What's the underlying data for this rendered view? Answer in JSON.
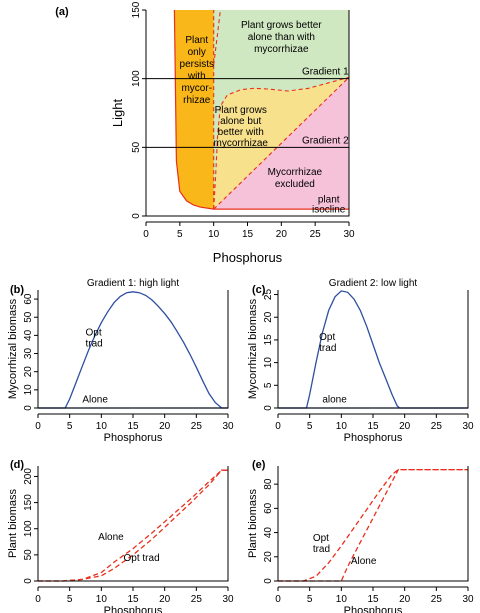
{
  "chart_data": [
    {
      "panel": "(a)",
      "type": "area",
      "xlabel": "Phosphorus",
      "ylabel": "Light",
      "xlim": [
        0,
        30
      ],
      "ylim": [
        0,
        150
      ],
      "xticks": [
        0,
        5,
        10,
        15,
        20,
        25,
        30
      ],
      "yticks": [
        0,
        50,
        100,
        150
      ],
      "regions": [
        {
          "label": "Plant only persists with mycor-rhizae",
          "lines": [
            "Plant",
            "only",
            "persists",
            "with",
            "mycor-",
            "rhizae"
          ],
          "color": "#f9b719"
        },
        {
          "label": "Plant grows better alone than with mycorrhizae",
          "lines": [
            "Plant grows better",
            "alone than with",
            "mycorrhizae"
          ],
          "color": "#cfe8c1"
        },
        {
          "label": "Plant grows alone but better with mycorrhizae",
          "lines": [
            "Plant grows",
            "alone but",
            "better with",
            "mycorrhizae"
          ],
          "color": "#f8e18c"
        },
        {
          "label": "Mycorrhizae excluded",
          "lines": [
            "Mycorrhizae",
            "excluded"
          ],
          "color": "#f6c2da"
        }
      ],
      "gradients": [
        {
          "label": "Gradient 1",
          "light": 100
        },
        {
          "label": "Gradient 2",
          "light": 50
        }
      ],
      "isocline_label": [
        "plant",
        "isocline"
      ],
      "isocline_color": "#e8301c",
      "boundary_points": {
        "plant_isocline": [
          [
            4.2,
            150
          ],
          [
            4.5,
            40
          ],
          [
            5,
            18
          ],
          [
            6,
            11
          ],
          [
            7,
            8
          ],
          [
            8,
            6.5
          ],
          [
            10,
            5
          ],
          [
            30,
            5
          ]
        ],
        "mycorrhiza_persistence": [
          [
            10,
            5
          ],
          [
            10.3,
            30
          ],
          [
            10.6,
            60
          ],
          [
            11,
            80
          ],
          [
            12,
            88
          ],
          [
            14,
            92
          ],
          [
            16,
            93
          ],
          [
            18,
            92.5
          ],
          [
            21,
            91
          ],
          [
            24,
            93
          ],
          [
            27,
            97
          ],
          [
            30,
            101
          ]
        ],
        "vertical_p10": [
          [
            10,
            5
          ],
          [
            10,
            150
          ]
        ],
        "upper_left_dashed": [
          [
            10,
            110
          ],
          [
            10.5,
            130
          ],
          [
            11,
            150
          ]
        ],
        "diagonal_upper": [
          [
            10,
            5
          ],
          [
            30,
            101
          ]
        ]
      }
    },
    {
      "panel": "(b)",
      "type": "line",
      "title": "Gradient 1: high light",
      "xlabel": "Phosphorus",
      "ylabel": "Mycorrhizal biomass",
      "xlim": [
        0,
        30
      ],
      "ylim": [
        0,
        65
      ],
      "xticks": [
        0,
        5,
        10,
        15,
        20,
        25,
        30
      ],
      "yticks": [
        0,
        10,
        20,
        30,
        40,
        50,
        60
      ],
      "color": "#2e4ea0",
      "series": [
        {
          "name": "Opt trad",
          "x": [
            0,
            4.3,
            5,
            6,
            7,
            8,
            9,
            10,
            11,
            12,
            13,
            14,
            15,
            16,
            17,
            18,
            19,
            20,
            21,
            22,
            23,
            24,
            25,
            26,
            27,
            28,
            29,
            29.5,
            30
          ],
          "values": [
            0,
            0,
            5,
            14,
            23,
            32,
            40,
            47,
            53,
            58,
            61.5,
            63.5,
            64,
            63.5,
            62,
            59.5,
            56,
            52,
            47.5,
            42,
            36,
            29.5,
            22.5,
            15,
            8,
            3,
            0,
            0,
            0
          ]
        },
        {
          "name": "Alone",
          "x": [
            0,
            30
          ],
          "values": [
            0,
            0
          ]
        }
      ],
      "annotations": [
        {
          "lines": [
            "Opt",
            "trad"
          ],
          "x": 7.5,
          "y": 40
        },
        {
          "lines": [
            "Alone"
          ],
          "x": 7,
          "y": 3
        }
      ]
    },
    {
      "panel": "(c)",
      "type": "line",
      "title": "Gradient 2: low light",
      "xlabel": "Phosphorus",
      "ylabel": "Mycorrhizal biomass",
      "xlim": [
        0,
        30
      ],
      "ylim": [
        0,
        26
      ],
      "xticks": [
        0,
        5,
        10,
        15,
        20,
        25,
        30
      ],
      "yticks": [
        0,
        5,
        10,
        15,
        20,
        25
      ],
      "color": "#2e4ea0",
      "series": [
        {
          "name": "Opt trad",
          "x": [
            0,
            4.5,
            5,
            6,
            7,
            8,
            9,
            10,
            11,
            12,
            13,
            14,
            15,
            16,
            17,
            18,
            18.8,
            19.2,
            30
          ],
          "values": [
            0,
            0,
            3,
            10,
            16.5,
            21.5,
            24.5,
            25.8,
            25.5,
            24,
            21.5,
            18,
            14,
            10,
            6.5,
            3,
            0.5,
            0,
            0
          ]
        },
        {
          "name": "alone",
          "x": [
            0,
            30
          ],
          "values": [
            0,
            0
          ]
        }
      ],
      "annotations": [
        {
          "lines": [
            "Opt",
            "trad"
          ],
          "x": 6.5,
          "y": 15
        },
        {
          "lines": [
            "alone"
          ],
          "x": 7,
          "y": 1.2
        }
      ]
    },
    {
      "panel": "(d)",
      "type": "line",
      "xlabel": "Phosphorus",
      "ylabel": "Plant biomass",
      "xlim": [
        0,
        30
      ],
      "ylim": [
        0,
        220
      ],
      "xticks": [
        0,
        5,
        10,
        15,
        20,
        25,
        30
      ],
      "yticks": [
        0,
        50,
        100,
        150,
        200
      ],
      "color": "#e8301c",
      "series": [
        {
          "name": "Alone",
          "x": [
            0,
            4,
            7,
            10,
            12,
            15,
            18,
            21,
            24,
            27,
            29,
            30
          ],
          "values": [
            0,
            0,
            3,
            16,
            36,
            62,
            92,
            124,
            156,
            190,
            212,
            212
          ]
        },
        {
          "name": "Opt trad",
          "x": [
            0,
            4,
            7,
            10,
            12,
            15,
            18,
            21,
            24,
            27,
            29,
            30
          ],
          "values": [
            0,
            0,
            3,
            10,
            24,
            50,
            80,
            114,
            148,
            184,
            212,
            212
          ]
        }
      ],
      "annotations": [
        {
          "lines": [
            "Alone"
          ],
          "x": 9.5,
          "y": 78
        },
        {
          "lines": [
            "Opt trad"
          ],
          "x": 13.5,
          "y": 38
        }
      ]
    },
    {
      "panel": "(e)",
      "type": "line",
      "xlabel": "Phosphorus",
      "ylabel": "Plant biomass",
      "xlim": [
        0,
        30
      ],
      "ylim": [
        0,
        95
      ],
      "xticks": [
        0,
        5,
        10,
        15,
        20,
        25,
        30
      ],
      "yticks": [
        0,
        20,
        40,
        60,
        80
      ],
      "color": "#e8301c",
      "series": [
        {
          "name": "Opt trad",
          "x": [
            0,
            4,
            6,
            8,
            10,
            12,
            14,
            16,
            18,
            19,
            30
          ],
          "values": [
            0,
            0,
            4,
            15,
            29,
            44,
            59,
            74,
            88,
            92,
            92
          ]
        },
        {
          "name": "Alone",
          "x": [
            0,
            4,
            10,
            11,
            13,
            15,
            17,
            19,
            30
          ],
          "values": [
            0,
            0,
            0,
            12,
            32,
            52,
            72,
            92,
            92
          ]
        }
      ],
      "annotations": [
        {
          "lines": [
            "Opt",
            "trad"
          ],
          "x": 5.5,
          "y": 33
        },
        {
          "lines": [
            "Alone"
          ],
          "x": 11.5,
          "y": 14
        }
      ]
    }
  ]
}
